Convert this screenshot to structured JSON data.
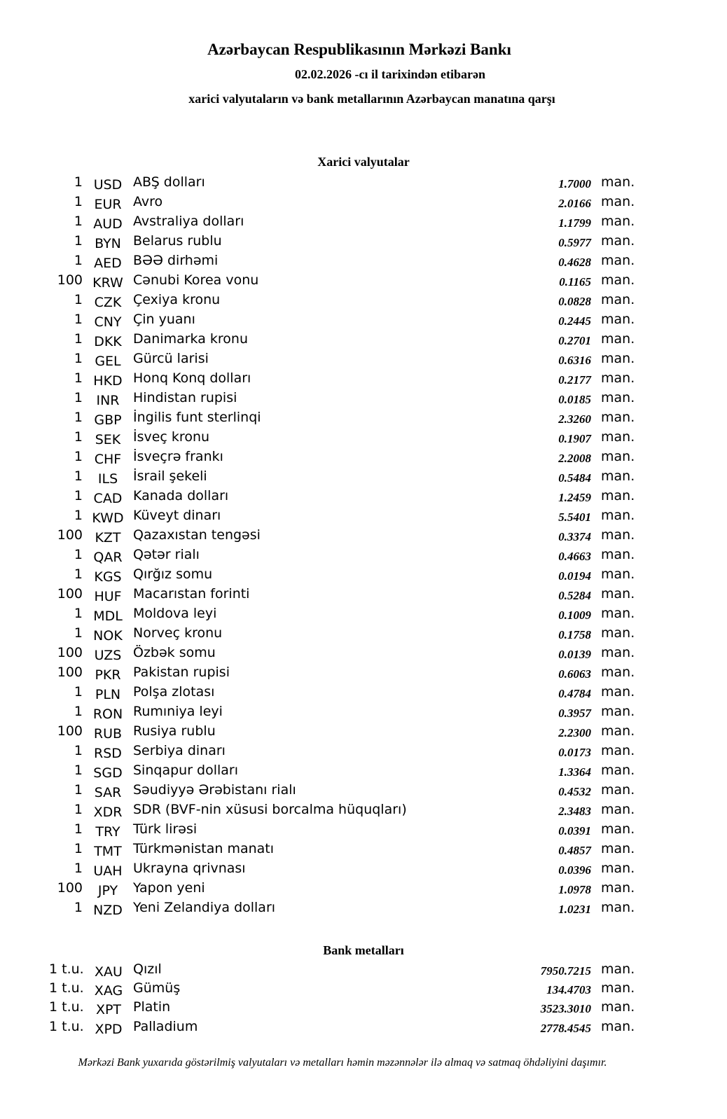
{
  "header": {
    "title": "Azərbaycan Respublikasının Mərkəzi Bankı",
    "date_line": "02.02.2026 -cı il tarixindən etibarən",
    "subtitle": "xarici valyutaların və bank metallarının Azərbaycan manatına qarşı"
  },
  "currencies": {
    "heading": "Xarici valyutalar",
    "unit": "man.",
    "rows": [
      {
        "amount": "1",
        "code": "USD",
        "name": "ABŞ dolları",
        "rate": "1.7000"
      },
      {
        "amount": "1",
        "code": "EUR",
        "name": "Avro",
        "rate": "2.0166"
      },
      {
        "amount": "1",
        "code": "AUD",
        "name": "Avstraliya dolları",
        "rate": "1.1799"
      },
      {
        "amount": "1",
        "code": "BYN",
        "name": "Belarus rublu",
        "rate": "0.5977"
      },
      {
        "amount": "1",
        "code": "AED",
        "name": "BƏƏ dirhəmi",
        "rate": "0.4628"
      },
      {
        "amount": "100",
        "code": "KRW",
        "name": "Cənubi Korea vonu",
        "rate": "0.1165"
      },
      {
        "amount": "1",
        "code": "CZK",
        "name": "Çexiya kronu",
        "rate": "0.0828"
      },
      {
        "amount": "1",
        "code": "CNY",
        "name": "Çin yuanı",
        "rate": "0.2445"
      },
      {
        "amount": "1",
        "code": "DKK",
        "name": "Danimarka kronu",
        "rate": "0.2701"
      },
      {
        "amount": "1",
        "code": "GEL",
        "name": "Gürcü larisi",
        "rate": "0.6316"
      },
      {
        "amount": "1",
        "code": "HKD",
        "name": "Honq Konq dolları",
        "rate": "0.2177"
      },
      {
        "amount": "1",
        "code": "INR",
        "name": "Hindistan rupisi",
        "rate": "0.0185"
      },
      {
        "amount": "1",
        "code": "GBP",
        "name": "İngilis funt sterlinqi",
        "rate": "2.3260"
      },
      {
        "amount": "1",
        "code": "SEK",
        "name": "İsveç kronu",
        "rate": "0.1907"
      },
      {
        "amount": "1",
        "code": "CHF",
        "name": "İsveçrə frankı",
        "rate": "2.2008"
      },
      {
        "amount": "1",
        "code": "ILS",
        "name": "İsrail şekeli",
        "rate": "0.5484"
      },
      {
        "amount": "1",
        "code": "CAD",
        "name": "Kanada dolları",
        "rate": "1.2459"
      },
      {
        "amount": "1",
        "code": "KWD",
        "name": "Küveyt dinarı",
        "rate": "5.5401"
      },
      {
        "amount": "100",
        "code": "KZT",
        "name": "Qazaxıstan tengəsi",
        "rate": "0.3374"
      },
      {
        "amount": "1",
        "code": "QAR",
        "name": "Qətər rialı",
        "rate": "0.4663"
      },
      {
        "amount": "1",
        "code": "KGS",
        "name": "Qırğız somu",
        "rate": "0.0194"
      },
      {
        "amount": "100",
        "code": "HUF",
        "name": "Macarıstan forinti",
        "rate": "0.5284"
      },
      {
        "amount": "1",
        "code": "MDL",
        "name": "Moldova leyi",
        "rate": "0.1009"
      },
      {
        "amount": "1",
        "code": "NOK",
        "name": "Norveç kronu",
        "rate": "0.1758"
      },
      {
        "amount": "100",
        "code": "UZS",
        "name": "Özbək somu",
        "rate": "0.0139"
      },
      {
        "amount": "100",
        "code": "PKR",
        "name": "Pakistan rupisi",
        "rate": "0.6063"
      },
      {
        "amount": "1",
        "code": "PLN",
        "name": "Polşa zlotası",
        "rate": "0.4784"
      },
      {
        "amount": "1",
        "code": "RON",
        "name": "Rumıniya leyi",
        "rate": "0.3957"
      },
      {
        "amount": "100",
        "code": "RUB",
        "name": "Rusiya rublu",
        "rate": "2.2300"
      },
      {
        "amount": "1",
        "code": "RSD",
        "name": "Serbiya dinarı",
        "rate": "0.0173"
      },
      {
        "amount": "1",
        "code": "SGD",
        "name": "Sinqapur dolları",
        "rate": "1.3364"
      },
      {
        "amount": "1",
        "code": "SAR",
        "name": "Səudiyyə Ərəbistanı rialı",
        "rate": "0.4532"
      },
      {
        "amount": "1",
        "code": "XDR",
        "name": "SDR (BVF-nin xüsusi borcalma hüquqları)",
        "rate": "2.3483"
      },
      {
        "amount": "1",
        "code": "TRY",
        "name": "Türk lirəsi",
        "rate": "0.0391"
      },
      {
        "amount": "1",
        "code": "TMT",
        "name": "Türkmənistan manatı",
        "rate": "0.4857"
      },
      {
        "amount": "1",
        "code": "UAH",
        "name": "Ukrayna qrivnası",
        "rate": "0.0396"
      },
      {
        "amount": "100",
        "code": "JPY",
        "name": "Yapon yeni",
        "rate": "1.0978"
      },
      {
        "amount": "1",
        "code": "NZD",
        "name": "Yeni Zelandiya dolları",
        "rate": "1.0231"
      }
    ]
  },
  "metals": {
    "heading": "Bank metalları",
    "unit": "man.",
    "rows": [
      {
        "amount": "1 t.u.",
        "code": "XAU",
        "name": "Qızıl",
        "rate": "7950.7215"
      },
      {
        "amount": "1 t.u.",
        "code": "XAG",
        "name": "Gümüş",
        "rate": "134.4703"
      },
      {
        "amount": "1 t.u.",
        "code": "XPT",
        "name": "Platin",
        "rate": "3523.3010"
      },
      {
        "amount": "1 t.u.",
        "code": "XPD",
        "name": "Palladium",
        "rate": "2778.4545"
      }
    ]
  },
  "footer": "Mərkəzi Bank yuxarıda göstərilmiş valyutaları və metalları həmin məzənnələr ilə almaq və satmaq öhdəliyini daşımır."
}
